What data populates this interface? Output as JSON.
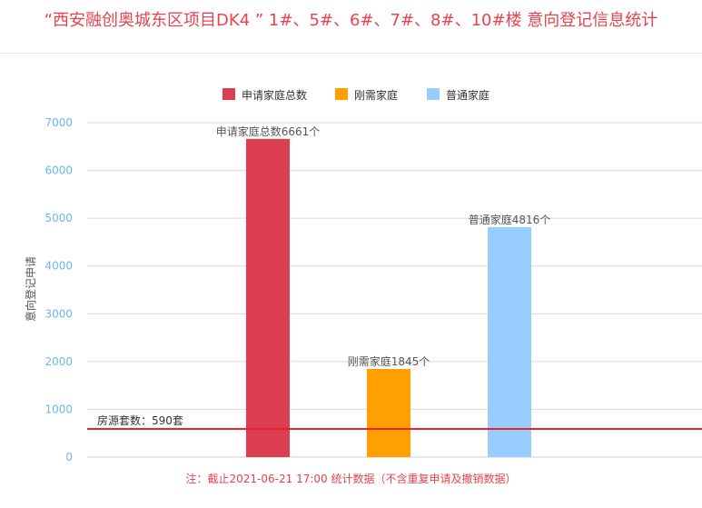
{
  "title": "“西安融创奥城东区项目DK4 ” 1#、5#、6#、7#、8#、10#楼 意向登记信息统计",
  "footnote": "注：截止2021-06-21 17:00 统计数据（不含重复申请及撤销数据）",
  "chart_data": {
    "type": "bar",
    "categories": [
      "申请家庭总数",
      "刚需家庭",
      "普通家庭"
    ],
    "values": [
      6661,
      1845,
      4816
    ],
    "colors": [
      "#dc3e52",
      "#ff9f00",
      "#99ccff"
    ],
    "data_labels": [
      "申请家庭总数6661个",
      "刚需家庭1845个",
      "普通家庭4816个"
    ],
    "legend": {
      "position": "top",
      "entries": [
        {
          "name": "申请家庭总数",
          "color": "#dc3e52"
        },
        {
          "name": "刚需家庭",
          "color": "#ff9f00"
        },
        {
          "name": "普通家庭",
          "color": "#99ccff"
        }
      ]
    },
    "ylabel": "意向登记申请",
    "ylim": [
      0,
      7000
    ],
    "yticks": [
      0,
      1000,
      2000,
      3000,
      4000,
      5000,
      6000,
      7000
    ],
    "grid": true,
    "reference_line": {
      "value": 590,
      "label": "房源套数：590套",
      "color": "#e8232f"
    }
  }
}
